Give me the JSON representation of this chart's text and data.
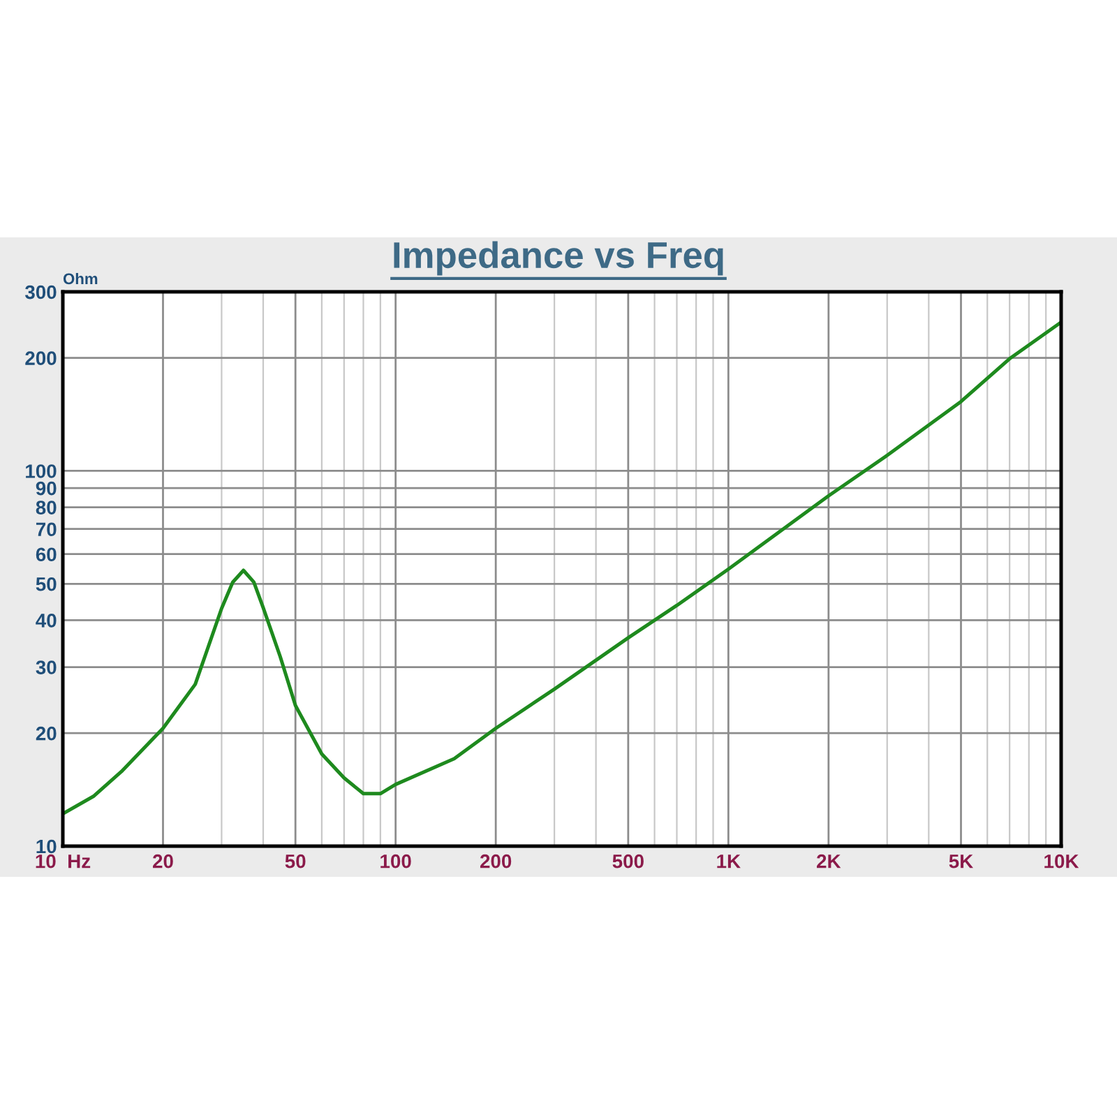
{
  "chart_data": {
    "type": "line",
    "title": "Impedance vs Freq",
    "ylabel": "Ohm",
    "x": [
      10,
      12.4,
      15,
      20,
      25,
      30,
      32.4,
      34.9,
      37.5,
      40,
      45,
      50,
      60,
      70,
      80,
      90,
      100,
      150,
      200,
      300,
      500,
      700,
      1000,
      2000,
      3000,
      5000,
      7000,
      10000
    ],
    "series": [
      {
        "color": "#1e8a1e",
        "values": [
          12.2,
          13.6,
          15.8,
          20.6,
          27,
          43,
          50.5,
          54.3,
          50.5,
          43.2,
          32,
          23.7,
          17.6,
          15.2,
          13.8,
          13.8,
          14.6,
          17.1,
          20.6,
          26.2,
          35.9,
          43.8,
          54.7,
          85.8,
          110,
          153,
          199,
          249
        ]
      }
    ],
    "log": "xy",
    "grid": true,
    "marker": "none",
    "line_style": "solid",
    "xlim": [
      10,
      10000
    ],
    "ylim": [
      10,
      300
    ],
    "xticks": [
      {
        "value": 10,
        "label": "10  Hz"
      },
      20,
      50,
      100,
      200,
      500,
      {
        "value": 1000,
        "label": "1K"
      },
      {
        "value": 2000,
        "label": "2K"
      },
      {
        "value": 5000,
        "label": "5K"
      },
      {
        "value": 10000,
        "label": "10K"
      }
    ],
    "yticks": [
      10,
      20,
      30,
      40,
      50,
      60,
      70,
      80,
      90,
      100,
      200,
      300
    ]
  }
}
